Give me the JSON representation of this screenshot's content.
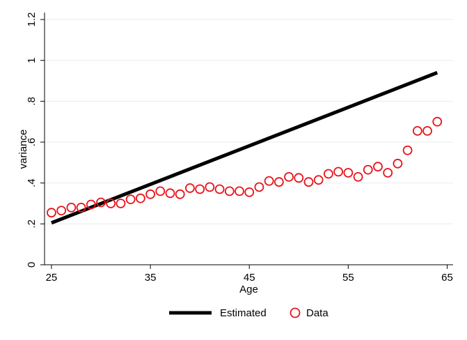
{
  "chart_data": {
    "type": "line",
    "title": "",
    "xlabel": "Age",
    "ylabel": "variance",
    "xlim": [
      24.3,
      65.6
    ],
    "ylim": [
      0,
      1.2
    ],
    "xticks": [
      25,
      35,
      45,
      55,
      65
    ],
    "yticks": [
      0,
      0.2,
      0.4,
      0.6,
      0.8,
      1.0,
      1.2
    ],
    "xtick_labels": [
      "25",
      "35",
      "45",
      "55",
      "65"
    ],
    "ytick_labels": [
      "0",
      ".2",
      ".4",
      ".6",
      ".8",
      "1",
      "1.2"
    ],
    "grid": true,
    "legend_position": "bottom",
    "series": [
      {
        "name": "Estimated",
        "kind": "line",
        "color": "#000000",
        "x": [
          25,
          64
        ],
        "y": [
          0.205,
          0.94
        ]
      },
      {
        "name": "Data",
        "kind": "scatter",
        "marker": "hollow-circle",
        "color": "#e8141b",
        "x": [
          25,
          26,
          27,
          28,
          29,
          30,
          31,
          32,
          33,
          34,
          35,
          36,
          37,
          38,
          39,
          40,
          41,
          42,
          43,
          44,
          45,
          46,
          47,
          48,
          49,
          50,
          51,
          52,
          53,
          54,
          55,
          56,
          57,
          58,
          59,
          60,
          61,
          62,
          63,
          64
        ],
        "y": [
          0.255,
          0.265,
          0.28,
          0.28,
          0.295,
          0.305,
          0.3,
          0.3,
          0.32,
          0.325,
          0.345,
          0.36,
          0.35,
          0.345,
          0.375,
          0.37,
          0.38,
          0.37,
          0.36,
          0.36,
          0.355,
          0.38,
          0.41,
          0.405,
          0.43,
          0.425,
          0.405,
          0.415,
          0.445,
          0.455,
          0.45,
          0.43,
          0.465,
          0.48,
          0.45,
          0.495,
          0.56,
          0.655,
          0.655,
          0.7
        ]
      }
    ]
  }
}
